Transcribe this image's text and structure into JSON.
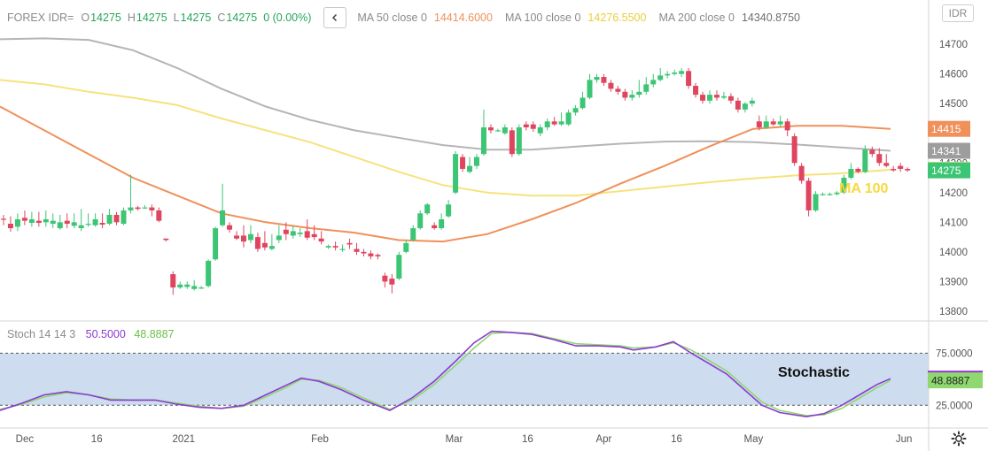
{
  "header": {
    "symbol": "FOREX IDR=",
    "open_label": "O",
    "open": "14275",
    "high_label": "H",
    "high": "14275",
    "low_label": "L",
    "low": "14275",
    "close_label": "C",
    "close": "14275",
    "change": "0 (0.00%)",
    "collapse_icon": "chevron-left-icon",
    "ma50_label": "MA 50 close 0",
    "ma50_value": "14414.6000",
    "ma100_label": "MA 100 close 0",
    "ma100_value": "14276.5500",
    "ma200_label": "MA 200 close 0",
    "ma200_value": "14340.8750"
  },
  "currency_button": "IDR",
  "colors": {
    "up": "#3cc574",
    "down": "#e0455f",
    "ma50": "#f0905a",
    "ma100": "#f7e27d",
    "ma200": "#b5b5b5",
    "stoch_k": "#8c3bd1",
    "stoch_d": "#8fd86f",
    "stoch_band": "#cddcee"
  },
  "stochastic": {
    "label": "Stoch 14 14 3",
    "k_value": "50.5000",
    "d_value": "48.8887",
    "annotation": "Stochastic",
    "upper_level": "75.0000",
    "lower_level": "25.0000",
    "axis_ticks": [
      {
        "label": "75.0000",
        "value": 75
      },
      {
        "label": "25.0000",
        "value": 25
      }
    ]
  },
  "ma_annotation": "MA 100",
  "price_badges": [
    {
      "label": "14415",
      "value": 14415,
      "color": "#f0905a"
    },
    {
      "label": "14341",
      "value": 14341,
      "color": "#9d9d9d"
    },
    {
      "label": "14277",
      "value": 14277,
      "color": "#f7e27d"
    },
    {
      "label": "14275",
      "value": 14275,
      "color": "#3cc574"
    }
  ],
  "stoch_badges": [
    {
      "label": "50.5000",
      "value": 50.5,
      "color": "#9b2bd6"
    },
    {
      "label": "48.8887",
      "value": 48.89,
      "color": "#8fd86f"
    }
  ],
  "chart_data": {
    "type": "candlestick",
    "x_labels": [
      "Dec",
      "16",
      "2021",
      "Feb",
      "Mar",
      "16",
      "Apr",
      "16",
      "May",
      "Jun"
    ],
    "y_ticks": [
      13800,
      13900,
      14000,
      14100,
      14200,
      14300,
      14400,
      14500,
      14600,
      14700
    ],
    "ylim": [
      13770,
      14760
    ],
    "candles": [
      [
        14112,
        14110,
        14090,
        14125
      ],
      [
        14095,
        14080,
        14068,
        14120
      ],
      [
        14085,
        14110,
        14070,
        14130
      ],
      [
        14115,
        14105,
        14090,
        14140
      ],
      [
        14098,
        14110,
        14085,
        14135
      ],
      [
        14105,
        14098,
        14085,
        14135
      ],
      [
        14100,
        14110,
        14085,
        14140
      ],
      [
        14095,
        14105,
        14080,
        14130
      ],
      [
        14080,
        14100,
        14075,
        14125
      ],
      [
        14105,
        14095,
        14080,
        14130
      ],
      [
        14088,
        14100,
        14080,
        14130
      ],
      [
        14080,
        14090,
        14070,
        14145
      ],
      [
        14092,
        14095,
        14085,
        14130
      ],
      [
        14090,
        14110,
        14085,
        14130
      ],
      [
        14098,
        14092,
        14080,
        14130
      ],
      [
        14095,
        14125,
        14090,
        14145
      ],
      [
        14125,
        14100,
        14090,
        14135
      ],
      [
        14095,
        14140,
        14090,
        14150
      ],
      [
        14140,
        14150,
        14130,
        14260
      ],
      [
        14150,
        14145,
        14140,
        14155
      ],
      [
        14150,
        14150,
        14145,
        14158
      ],
      [
        14150,
        14140,
        14120,
        14160
      ],
      [
        14140,
        14105,
        14100,
        14150
      ],
      [
        14045,
        14040,
        14035,
        14045
      ],
      [
        13925,
        13880,
        13855,
        13935
      ],
      [
        13880,
        13890,
        13875,
        13900
      ],
      [
        13882,
        13890,
        13875,
        13900
      ],
      [
        13875,
        13885,
        13870,
        13905
      ],
      [
        13880,
        13880,
        13875,
        13885
      ],
      [
        13885,
        13970,
        13880,
        13975
      ],
      [
        13975,
        14080,
        13970,
        14085
      ],
      [
        14090,
        14140,
        14085,
        14230
      ],
      [
        14090,
        14075,
        14065,
        14100
      ],
      [
        14055,
        14045,
        14040,
        14070
      ],
      [
        14055,
        14035,
        14015,
        14090
      ],
      [
        14040,
        14060,
        14030,
        14090
      ],
      [
        14050,
        14010,
        14000,
        14065
      ],
      [
        14030,
        14015,
        14005,
        14070
      ],
      [
        14010,
        14020,
        14005,
        14060
      ],
      [
        14040,
        14055,
        14030,
        14090
      ],
      [
        14075,
        14060,
        14040,
        14100
      ],
      [
        14055,
        14070,
        14045,
        14090
      ],
      [
        14060,
        14065,
        14050,
        14080
      ],
      [
        14070,
        14048,
        14040,
        14110
      ],
      [
        14060,
        14050,
        14040,
        14090
      ],
      [
        14045,
        14035,
        14025,
        14070
      ],
      [
        14015,
        14020,
        14010,
        14025
      ],
      [
        14020,
        14015,
        14005,
        14035
      ],
      [
        14010,
        14010,
        14000,
        14025
      ],
      [
        14030,
        14025,
        14010,
        14045
      ],
      [
        14010,
        14000,
        13990,
        14030
      ],
      [
        14000,
        13995,
        13985,
        14010
      ],
      [
        13995,
        13985,
        13975,
        14005
      ],
      [
        13990,
        13985,
        13975,
        13995
      ],
      [
        13920,
        13900,
        13880,
        13930
      ],
      [
        13910,
        13890,
        13860,
        13925
      ],
      [
        13910,
        13990,
        13905,
        14000
      ],
      [
        14000,
        14030,
        13995,
        14040
      ],
      [
        14040,
        14080,
        14035,
        14090
      ],
      [
        14080,
        14130,
        14075,
        14140
      ],
      [
        14130,
        14160,
        14125,
        14165
      ],
      [
        14090,
        14080,
        14075,
        14100
      ],
      [
        14080,
        14110,
        14075,
        14130
      ],
      [
        14120,
        14160,
        14115,
        14175
      ],
      [
        14200,
        14330,
        14195,
        14340
      ],
      [
        14320,
        14280,
        14270,
        14330
      ],
      [
        14270,
        14290,
        14265,
        14320
      ],
      [
        14290,
        14320,
        14280,
        14330
      ],
      [
        14330,
        14420,
        14325,
        14480
      ],
      [
        14420,
        14410,
        14400,
        14430
      ],
      [
        14410,
        14410,
        14405,
        14415
      ],
      [
        14400,
        14420,
        14395,
        14430
      ],
      [
        14410,
        14330,
        14320,
        14420
      ],
      [
        14330,
        14420,
        14325,
        14430
      ],
      [
        14430,
        14420,
        14410,
        14440
      ],
      [
        14430,
        14415,
        14405,
        14440
      ],
      [
        14400,
        14420,
        14390,
        14430
      ],
      [
        14420,
        14440,
        14410,
        14450
      ],
      [
        14440,
        14430,
        14425,
        14455
      ],
      [
        14430,
        14440,
        14425,
        14470
      ],
      [
        14430,
        14470,
        14425,
        14480
      ],
      [
        14470,
        14485,
        14460,
        14495
      ],
      [
        14485,
        14520,
        14480,
        14540
      ],
      [
        14520,
        14580,
        14515,
        14600
      ],
      [
        14580,
        14590,
        14570,
        14600
      ],
      [
        14590,
        14570,
        14560,
        14600
      ],
      [
        14570,
        14550,
        14540,
        14580
      ],
      [
        14550,
        14540,
        14530,
        14560
      ],
      [
        14540,
        14520,
        14510,
        14550
      ],
      [
        14520,
        14530,
        14510,
        14545
      ],
      [
        14530,
        14540,
        14520,
        14580
      ],
      [
        14540,
        14565,
        14530,
        14590
      ],
      [
        14565,
        14580,
        14555,
        14600
      ],
      [
        14580,
        14595,
        14575,
        14620
      ],
      [
        14595,
        14600,
        14585,
        14610
      ],
      [
        14600,
        14605,
        14595,
        14615
      ],
      [
        14600,
        14610,
        14590,
        14620
      ],
      [
        14610,
        14560,
        14550,
        14620
      ],
      [
        14560,
        14530,
        14520,
        14570
      ],
      [
        14530,
        14510,
        14500,
        14540
      ],
      [
        14510,
        14530,
        14500,
        14545
      ],
      [
        14530,
        14520,
        14510,
        14545
      ],
      [
        14520,
        14525,
        14515,
        14540
      ],
      [
        14525,
        14510,
        14500,
        14535
      ],
      [
        14510,
        14480,
        14470,
        14520
      ],
      [
        14480,
        14500,
        14470,
        14505
      ],
      [
        14500,
        14510,
        14490,
        14520
      ],
      [
        14440,
        14420,
        14410,
        14460
      ],
      [
        14420,
        14440,
        14415,
        14460
      ],
      [
        14440,
        14430,
        14425,
        14450
      ],
      [
        14430,
        14440,
        14420,
        14460
      ],
      [
        14440,
        14410,
        14390,
        14450
      ],
      [
        14390,
        14300,
        14290,
        14400
      ],
      [
        14290,
        14240,
        14230,
        14300
      ],
      [
        14240,
        14140,
        14120,
        14250
      ],
      [
        14140,
        14195,
        14135,
        14205
      ],
      [
        14195,
        14195,
        14190,
        14200
      ],
      [
        14195,
        14195,
        14190,
        14200
      ],
      [
        14195,
        14200,
        14190,
        14205
      ],
      [
        14200,
        14250,
        14195,
        14260
      ],
      [
        14250,
        14280,
        14245,
        14300
      ],
      [
        14280,
        14270,
        14265,
        14285
      ],
      [
        14270,
        14345,
        14265,
        14360
      ],
      [
        14345,
        14330,
        14320,
        14355
      ],
      [
        14330,
        14300,
        14290,
        14350
      ],
      [
        14300,
        14290,
        14285,
        14330
      ],
      [
        14280,
        14275,
        14270,
        14290
      ],
      [
        14290,
        14280,
        14270,
        14300
      ],
      [
        14280,
        14275,
        14270,
        14285
      ]
    ],
    "ma50": [
      [
        0,
        14490
      ],
      [
        50,
        14410
      ],
      [
        100,
        14330
      ],
      [
        150,
        14250
      ],
      [
        200,
        14190
      ],
      [
        250,
        14130
      ],
      [
        300,
        14100
      ],
      [
        350,
        14080
      ],
      [
        400,
        14065
      ],
      [
        450,
        14040
      ],
      [
        500,
        14035
      ],
      [
        550,
        14060
      ],
      [
        600,
        14110
      ],
      [
        650,
        14165
      ],
      [
        700,
        14230
      ],
      [
        750,
        14290
      ],
      [
        800,
        14355
      ],
      [
        850,
        14415
      ],
      [
        900,
        14425
      ],
      [
        950,
        14425
      ],
      [
        1005,
        14415
      ]
    ],
    "ma100": [
      [
        0,
        14580
      ],
      [
        50,
        14565
      ],
      [
        100,
        14540
      ],
      [
        150,
        14520
      ],
      [
        200,
        14495
      ],
      [
        250,
        14450
      ],
      [
        300,
        14410
      ],
      [
        350,
        14370
      ],
      [
        400,
        14320
      ],
      [
        450,
        14270
      ],
      [
        500,
        14225
      ],
      [
        550,
        14200
      ],
      [
        600,
        14190
      ],
      [
        650,
        14190
      ],
      [
        700,
        14205
      ],
      [
        750,
        14220
      ],
      [
        800,
        14235
      ],
      [
        850,
        14248
      ],
      [
        900,
        14258
      ],
      [
        950,
        14265
      ],
      [
        1005,
        14277
      ]
    ],
    "ma200": [
      [
        0,
        14717
      ],
      [
        50,
        14720
      ],
      [
        100,
        14715
      ],
      [
        150,
        14680
      ],
      [
        200,
        14620
      ],
      [
        250,
        14550
      ],
      [
        300,
        14490
      ],
      [
        350,
        14445
      ],
      [
        400,
        14410
      ],
      [
        450,
        14385
      ],
      [
        500,
        14360
      ],
      [
        550,
        14345
      ],
      [
        600,
        14345
      ],
      [
        650,
        14355
      ],
      [
        700,
        14365
      ],
      [
        750,
        14372
      ],
      [
        800,
        14373
      ],
      [
        850,
        14370
      ],
      [
        900,
        14362
      ],
      [
        950,
        14352
      ],
      [
        1005,
        14341
      ]
    ],
    "stoch_ylim": [
      4,
      105
    ],
    "stoch_k": [
      [
        0,
        20
      ],
      [
        25,
        27
      ],
      [
        50,
        35
      ],
      [
        75,
        38
      ],
      [
        100,
        35
      ],
      [
        125,
        30
      ],
      [
        150,
        30
      ],
      [
        175,
        30
      ],
      [
        200,
        26
      ],
      [
        225,
        23
      ],
      [
        250,
        22
      ],
      [
        275,
        25
      ],
      [
        300,
        35
      ],
      [
        325,
        45
      ],
      [
        340,
        51
      ],
      [
        360,
        48
      ],
      [
        385,
        40
      ],
      [
        410,
        30
      ],
      [
        440,
        20
      ],
      [
        465,
        32
      ],
      [
        490,
        48
      ],
      [
        515,
        68
      ],
      [
        535,
        85
      ],
      [
        555,
        96
      ],
      [
        575,
        95
      ],
      [
        600,
        93
      ],
      [
        625,
        88
      ],
      [
        650,
        82
      ],
      [
        675,
        82
      ],
      [
        700,
        81
      ],
      [
        715,
        78
      ],
      [
        740,
        81
      ],
      [
        760,
        86
      ],
      [
        780,
        75
      ],
      [
        800,
        65
      ],
      [
        820,
        55
      ],
      [
        840,
        40
      ],
      [
        860,
        25
      ],
      [
        880,
        18
      ],
      [
        910,
        14
      ],
      [
        930,
        17
      ],
      [
        950,
        25
      ],
      [
        970,
        35
      ],
      [
        990,
        45
      ],
      [
        1005,
        50.5
      ]
    ],
    "stoch_d": [
      [
        0,
        21
      ],
      [
        25,
        26
      ],
      [
        50,
        33
      ],
      [
        75,
        37
      ],
      [
        100,
        35
      ],
      [
        125,
        31
      ],
      [
        150,
        30
      ],
      [
        175,
        30
      ],
      [
        200,
        27
      ],
      [
        225,
        24
      ],
      [
        250,
        22
      ],
      [
        275,
        24
      ],
      [
        300,
        33
      ],
      [
        325,
        43
      ],
      [
        340,
        50
      ],
      [
        360,
        49
      ],
      [
        385,
        42
      ],
      [
        410,
        32
      ],
      [
        440,
        21
      ],
      [
        465,
        30
      ],
      [
        490,
        45
      ],
      [
        515,
        64
      ],
      [
        535,
        80
      ],
      [
        555,
        94
      ],
      [
        575,
        95
      ],
      [
        600,
        94
      ],
      [
        625,
        89
      ],
      [
        650,
        84
      ],
      [
        675,
        83
      ],
      [
        700,
        82
      ],
      [
        715,
        80
      ],
      [
        740,
        81
      ],
      [
        760,
        85
      ],
      [
        780,
        78
      ],
      [
        800,
        68
      ],
      [
        820,
        58
      ],
      [
        840,
        43
      ],
      [
        860,
        28
      ],
      [
        880,
        20
      ],
      [
        910,
        15
      ],
      [
        930,
        16
      ],
      [
        950,
        22
      ],
      [
        970,
        32
      ],
      [
        990,
        42
      ],
      [
        1005,
        48.9
      ]
    ]
  }
}
